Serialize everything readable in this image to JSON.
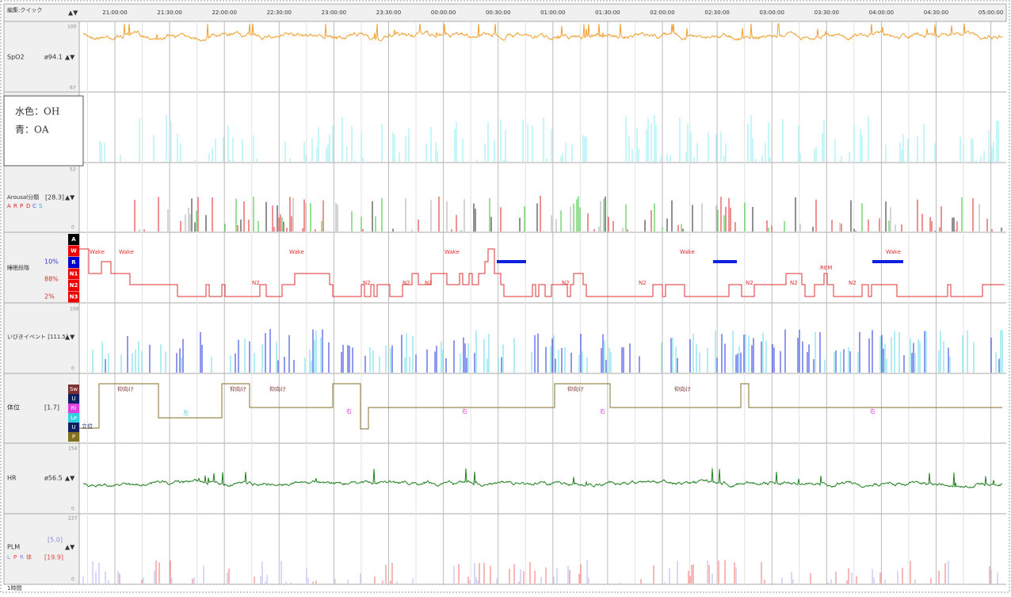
{
  "header": {
    "mode": "編集:クイック",
    "arrows": "▲▼",
    "times": [
      "21:00:00",
      "21:30:00",
      "22:00:00",
      "22:30:00",
      "23:00:00",
      "23:30:00",
      "00:00:00",
      "00:30:00",
      "01:00:00",
      "01:30:00",
      "02:00:00",
      "02:30:00",
      "03:00:00",
      "03:30:00",
      "04:00:00",
      "04:30:00",
      "05:00:00"
    ]
  },
  "spo2": {
    "label": "SpO2",
    "value": "ø94.1",
    "arrows": "▲▼",
    "top": "100",
    "bottom": "67"
  },
  "legend_box": {
    "lines": [
      "水色：OH",
      "青：OA"
    ]
  },
  "arousal": {
    "label": "Arousal分類",
    "value": "[28.3]",
    "arrows": "▲▼",
    "top": "52",
    "bottom": "0",
    "types": [
      "A",
      "R",
      "P",
      "D",
      "C",
      "S"
    ]
  },
  "sleep_stage": {
    "label": "睡眠段階",
    "percents": [
      "10%",
      "88%",
      "2%"
    ],
    "stages": [
      "A",
      "W",
      "R",
      "N1",
      "N2",
      "N3"
    ],
    "trace_labels": [
      "Wake",
      "Wake",
      "N2",
      "Wake",
      "N2",
      "N2",
      "N2",
      "Wake",
      "N2",
      "N2",
      "Wake",
      "N2",
      "N2",
      "REM",
      "N2",
      "Wake"
    ]
  },
  "snore": {
    "label": "いびきイベント [111.5]",
    "arrows": "▲▼",
    "top": "100",
    "bottom": "0"
  },
  "position": {
    "label": "体位",
    "value": "[1.7]",
    "stages": [
      "Sw",
      "U",
      "Ri",
      "Le",
      "U",
      "P"
    ],
    "trace_labels": [
      "立位",
      "仰向け",
      "左",
      "仰向け",
      "仰向け",
      "右",
      "右",
      "仰向け",
      "右",
      "仰向け",
      "右"
    ]
  },
  "hr": {
    "label": "HR",
    "value": "ø56.5",
    "arrows": "▲▼",
    "top": "154",
    "bottom": "0"
  },
  "plm": {
    "label": "PLM",
    "arrows": "▲▼",
    "value1": "[5.0]",
    "value2": "[19.9]",
    "types": [
      "L",
      "P",
      "R",
      "体"
    ],
    "top": "227",
    "bottom": "0"
  },
  "footer": {
    "text": "1時間"
  }
}
